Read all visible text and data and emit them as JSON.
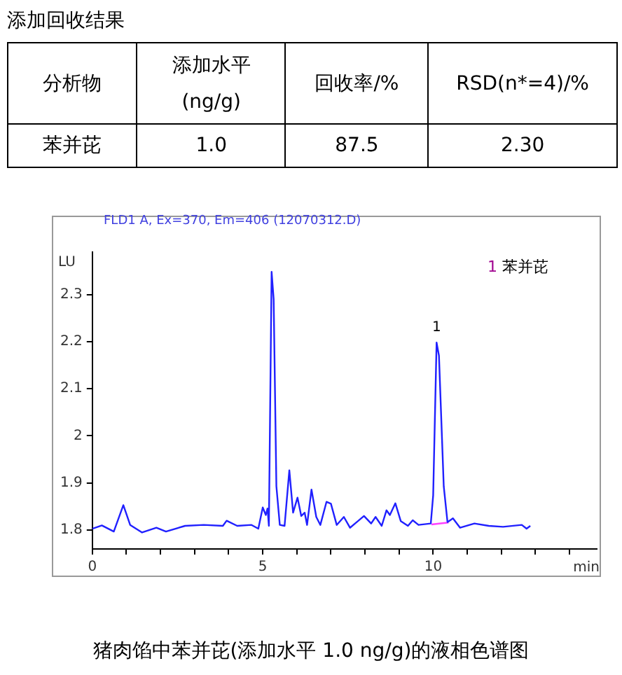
{
  "chart_data": [
    {
      "type": "other",
      "title": "添加回收结果",
      "annotations": [
        "分析物",
        "添加水平 (ng/g)",
        "回收率/%",
        "RSD(n*=4)/%",
        "苯并芘",
        "1.0",
        "87.5",
        "2.30"
      ]
    },
    {
      "type": "line",
      "title": "猪肉馅中苯并芘(添加水平 1.0 ng/g)的液相色谱图",
      "subtitle": "FLD1 A, Ex=370, Em=406 (12070312.D)",
      "xlabel": "min",
      "ylabel": "LU",
      "xlim": [
        0,
        14.8
      ],
      "ylim": [
        1.76,
        2.39
      ],
      "xticks": [
        0,
        {
          "value": 1,
          "label": null
        },
        {
          "value": 2,
          "label": null
        },
        {
          "value": 3,
          "label": null
        },
        {
          "value": 4,
          "label": null
        },
        5,
        {
          "value": 6,
          "label": null
        },
        {
          "value": 7,
          "label": null
        },
        {
          "value": 8,
          "label": null
        },
        {
          "value": 9,
          "label": null
        },
        10,
        {
          "value": 11,
          "label": null
        },
        {
          "value": 12,
          "label": null
        },
        {
          "value": 13,
          "label": null
        },
        {
          "value": 14,
          "label": null
        }
      ],
      "yticks": [
        1.8,
        1.9,
        2,
        2.1,
        2.2,
        2.3
      ],
      "grid": false,
      "legend": false,
      "marker": "none",
      "line_style": "solid",
      "annotations": [
        {
          "text": "1",
          "x": 10.1,
          "y": 2.198
        },
        "1 苯并芘"
      ],
      "series": [
        {
          "color": "#2020ff",
          "x": [
            0,
            0.28,
            0.63,
            0.91,
            1.11,
            1.46,
            1.88,
            2.16,
            2.72,
            3.27,
            3.83,
            3.94,
            4.25,
            4.67,
            4.87,
            5.0,
            5.09,
            5.14,
            5.18,
            5.26,
            5.32,
            5.4,
            5.5,
            5.64,
            5.78,
            5.89,
            6.02,
            6.13,
            6.23,
            6.3,
            6.43,
            6.57,
            6.69,
            6.87,
            7.0,
            7.17,
            7.38,
            7.56,
            7.97,
            8.18,
            8.31,
            8.49,
            8.63,
            8.73,
            8.89,
            9.05,
            9.26,
            9.4,
            9.57,
            9.93,
            10.0,
            10.1,
            10.17,
            10.31,
            10.42,
            10.58,
            10.79,
            11.21,
            11.63,
            12.05,
            12.6,
            12.74,
            12.85
          ],
          "values": [
            1.803,
            1.81,
            1.797,
            1.853,
            1.811,
            1.795,
            1.805,
            1.797,
            1.809,
            1.811,
            1.809,
            1.82,
            1.809,
            1.811,
            1.803,
            1.848,
            1.832,
            1.846,
            1.809,
            2.348,
            2.29,
            1.893,
            1.811,
            1.809,
            1.927,
            1.837,
            1.869,
            1.83,
            1.837,
            1.811,
            1.886,
            1.828,
            1.811,
            1.86,
            1.856,
            1.811,
            1.828,
            1.805,
            1.83,
            1.814,
            1.828,
            1.809,
            1.842,
            1.832,
            1.857,
            1.819,
            1.809,
            1.821,
            1.811,
            1.814,
            1.874,
            2.198,
            2.17,
            1.893,
            1.817,
            1.825,
            1.805,
            1.814,
            1.809,
            1.807,
            1.811,
            1.803,
            1.809
          ]
        },
        {
          "color": "#ff40ff",
          "x": [
            9.95,
            10.45
          ],
          "values": [
            1.812,
            1.816
          ]
        }
      ]
    }
  ]
}
